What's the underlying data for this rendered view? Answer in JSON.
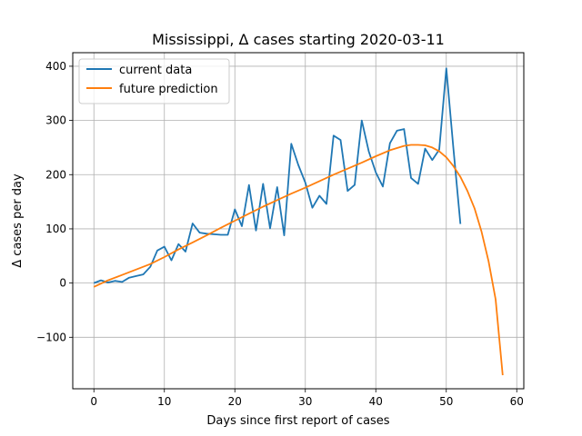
{
  "chart_data": {
    "type": "line",
    "title": "Mississippi, Δ cases starting 2020-03-11",
    "xlabel": "Days since first report of cases",
    "ylabel": "Δ cases per day",
    "xlim": [
      -3,
      61
    ],
    "ylim": [
      -195,
      425
    ],
    "xticks": [
      0,
      10,
      20,
      30,
      40,
      50,
      60
    ],
    "yticks": [
      -100,
      0,
      100,
      200,
      300,
      400
    ],
    "ytick_labels": [
      "−100",
      "0",
      "100",
      "200",
      "300",
      "400"
    ],
    "grid": true,
    "legend_position": "top-left",
    "series": [
      {
        "name": "current data",
        "color": "#1f77b4",
        "x": [
          0,
          1,
          2,
          3,
          4,
          5,
          6,
          7,
          8,
          9,
          10,
          11,
          12,
          13,
          14,
          15,
          16,
          17,
          18,
          19,
          20,
          21,
          22,
          23,
          24,
          25,
          26,
          27,
          28,
          29,
          30,
          31,
          32,
          33,
          34,
          35,
          36,
          37,
          38,
          39,
          40,
          41,
          42,
          43,
          44,
          45,
          46,
          47,
          48,
          49,
          50,
          51,
          52
        ],
        "y": [
          0,
          5,
          1,
          4,
          2,
          10,
          13,
          16,
          30,
          60,
          67,
          42,
          72,
          58,
          110,
          93,
          91,
          90,
          89,
          89,
          136,
          105,
          181,
          97,
          183,
          101,
          177,
          88,
          257,
          218,
          185,
          139,
          161,
          146,
          272,
          264,
          170,
          181,
          300,
          243,
          204,
          178,
          258,
          281,
          284,
          194,
          183,
          248,
          227,
          246,
          396,
          250,
          109
        ]
      },
      {
        "name": "future prediction",
        "color": "#ff7f0e",
        "x": [
          0,
          2,
          4,
          6,
          8,
          10,
          12,
          14,
          16,
          18,
          20,
          22,
          24,
          26,
          28,
          30,
          32,
          34,
          36,
          38,
          40,
          42,
          44,
          45,
          46,
          47,
          48,
          49,
          50,
          51,
          52,
          53,
          54,
          55,
          56,
          57,
          58
        ],
        "y": [
          -7,
          5,
          15,
          25,
          35,
          48,
          62,
          75,
          88,
          102,
          115,
          128,
          141,
          153,
          165,
          176,
          188,
          200,
          211,
          222,
          234,
          245,
          253,
          255,
          255,
          254,
          250,
          243,
          232,
          216,
          196,
          170,
          138,
          95,
          40,
          -30,
          -170
        ]
      }
    ]
  }
}
